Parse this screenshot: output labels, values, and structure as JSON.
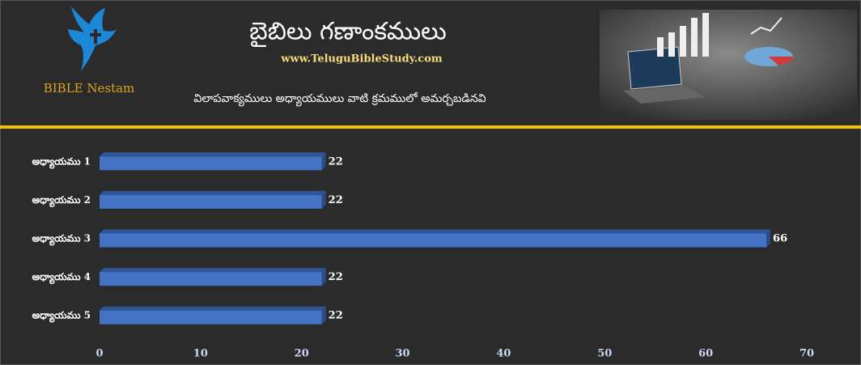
{
  "header": {
    "logo_text": "BIBLE Nestam",
    "website": "www.TeluguBibleStudy.com"
  },
  "chart_data": {
    "type": "bar",
    "orientation": "horizontal",
    "title": "బైబిలు గణాంకములు",
    "subtitle": "విలాపవాక్యములు అధ్యాయములు వాటి క్రమములో అమర్చబడినవి",
    "categories": [
      "అధ్యాయము 1",
      "అధ్యాయము 2",
      "అధ్యాయము 3",
      "అధ్యాయము 4",
      "అధ్యాయము 5"
    ],
    "values": [
      22,
      22,
      66,
      22,
      22
    ],
    "color": "#4472c4",
    "xlim": [
      0,
      70
    ],
    "xticks": [
      0,
      10,
      20,
      30,
      40,
      50,
      60,
      70
    ],
    "grid": false
  }
}
